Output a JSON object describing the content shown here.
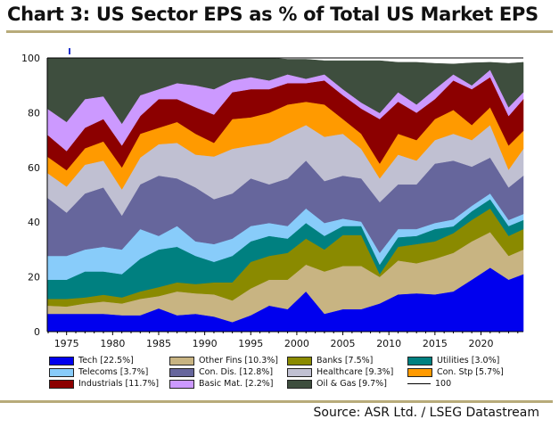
{
  "title": "Chart 3: US Sector EPS as % of Total US Market EPS",
  "source": "Source: ASR Ltd. / LSEG Datastream",
  "chart_data": {
    "type": "area",
    "stacked": true,
    "title": "Chart 3: US Sector EPS as % of Total US Market EPS",
    "xlabel": "",
    "ylabel": "",
    "xlim": [
      1972.9,
      2024.6
    ],
    "ylim": [
      0,
      100
    ],
    "x_ticks": [
      1975,
      1980,
      1985,
      1990,
      1995,
      2000,
      2005,
      2010,
      2015,
      2020
    ],
    "y_ticks": [
      0,
      20,
      40,
      60,
      80,
      100
    ],
    "grid": false,
    "legend_placement": "bottom",
    "x": [
      1973,
      1975,
      1977,
      1979,
      1981,
      1983,
      1985,
      1987,
      1989,
      1991,
      1993,
      1995,
      1997,
      1999,
      2001,
      2003,
      2005,
      2007,
      2009,
      2011,
      2013,
      2015,
      2017,
      2019,
      2021,
      2023,
      2024.5
    ],
    "series": [
      {
        "name": "Tech [22.5%]",
        "color": "#0000ee",
        "values": [
          6.5,
          6.5,
          6.5,
          6.5,
          6.0,
          6.0,
          8.5,
          6.0,
          6.5,
          5.5,
          3.5,
          6.0,
          9.5,
          8.2,
          14.7,
          6.5,
          8.2,
          8.2,
          10.3,
          13.6,
          14,
          13.6,
          14.7,
          19,
          23.4,
          19,
          21
        ]
      },
      {
        "name": "Other Fins [10.3%]",
        "color": "#c8b482",
        "values": [
          3.0,
          2.7,
          3.8,
          4.5,
          4.3,
          6.0,
          4.5,
          8.7,
          7.5,
          8.1,
          7.9,
          9.8,
          9.5,
          10.8,
          9.8,
          15.5,
          15.8,
          15.8,
          9.7,
          12.4,
          11,
          13.0,
          14.1,
          14,
          13.0,
          8.7,
          9
        ]
      },
      {
        "name": "Banks [7.5%]",
        "color": "#8a8a00",
        "values": [
          2.5,
          2.8,
          2.2,
          2.5,
          2.2,
          2.7,
          3.3,
          3.3,
          3.4,
          4.4,
          6.6,
          9.7,
          8.7,
          9.8,
          9.5,
          8.0,
          11.3,
          11.3,
          1.0,
          5.0,
          7,
          6.4,
          7.2,
          7.8,
          8.6,
          7.3,
          7.5
        ]
      },
      {
        "name": "Utilities [3.0%]",
        "color": "#008080",
        "values": [
          7.0,
          7.0,
          9.5,
          8.5,
          8.5,
          11.9,
          13.7,
          13.0,
          10.3,
          7.5,
          9.7,
          7.5,
          7.3,
          5.2,
          5.7,
          5.0,
          3.3,
          3.3,
          3.5,
          3.5,
          3,
          4.5,
          2.5,
          3.2,
          3.4,
          3.6,
          3.3
        ]
      },
      {
        "name": "Telecoms [3.7%]",
        "color": "#88ccfa",
        "values": [
          8.7,
          8.7,
          8.0,
          9.0,
          9.0,
          10.9,
          5.0,
          7.6,
          5.3,
          6.5,
          6.3,
          5.6,
          4.7,
          4.6,
          5.3,
          4.7,
          2.7,
          1.6,
          4.3,
          3.0,
          2.5,
          2.2,
          2.5,
          2.0,
          2.1,
          2.2,
          2.2
        ]
      },
      {
        "name": "Con. Dis. [12.8%]",
        "color": "#66669c",
        "values": [
          21.3,
          15.8,
          20.5,
          21.7,
          12.4,
          16.3,
          22.0,
          17.4,
          19.7,
          16.4,
          16.5,
          17.4,
          14.1,
          17.4,
          17.5,
          15.3,
          15.7,
          15.8,
          18.5,
          16.3,
          16.3,
          21.7,
          21.5,
          14.3,
          13.1,
          11.9,
          14
        ]
      },
      {
        "name": "Healthcare [9.3%]",
        "color": "#c0c0d2",
        "values": [
          9.0,
          9.5,
          10.5,
          9.8,
          9.6,
          9.8,
          11.5,
          13.0,
          12.0,
          15.6,
          16.3,
          12.0,
          15.2,
          16.3,
          13.0,
          16.2,
          15.3,
          10.8,
          8.7,
          10.9,
          8.7,
          8.6,
          9.8,
          9.7,
          11.9,
          6.5,
          9.8
        ]
      },
      {
        "name": "Con. Stp [5.7%]",
        "color": "#ff9a00",
        "values": [
          6.0,
          6.0,
          6.0,
          7.0,
          8.0,
          8.7,
          6.0,
          7.6,
          7.6,
          5.0,
          10.9,
          10.3,
          11.0,
          10.7,
          8.5,
          11.8,
          5.4,
          5.5,
          5.4,
          7.6,
          7.5,
          7.7,
          8.7,
          5.5,
          6.5,
          8.8,
          6.6
        ]
      },
      {
        "name": "Industrials [11.7%]",
        "color": "#8c0000",
        "values": [
          8.0,
          7.0,
          7.5,
          8.2,
          8.0,
          6.5,
          10.5,
          8.4,
          9.7,
          10.3,
          9.8,
          10.3,
          8.6,
          7.8,
          6.8,
          8.8,
          8.7,
          9.2,
          16.3,
          11.7,
          10,
          7.3,
          10.8,
          13.1,
          11.0,
          10.8,
          11.6
        ]
      },
      {
        "name": "Basic Mat. [2.2%]",
        "color": "#cc99ff",
        "values": [
          9.5,
          10.6,
          10.5,
          8.3,
          8.0,
          7.6,
          3.6,
          5.8,
          8.0,
          9.3,
          4.3,
          4.4,
          3.2,
          3.2,
          1.6,
          2.2,
          2.2,
          2.2,
          2.2,
          3.5,
          3,
          3.6,
          2.2,
          1.4,
          2.7,
          3.2,
          2.5
        ]
      },
      {
        "name": "Oil & Gas [9.7%]",
        "color": "#3e4e3e",
        "values": [
          18.5,
          23.4,
          15.0,
          14.0,
          24.0,
          13.6,
          11.4,
          9.2,
          10.0,
          11.4,
          8.2,
          7.0,
          8.2,
          5.5,
          7.1,
          5.0,
          10.4,
          15.3,
          19.1,
          10.9,
          15.4,
          9.4,
          3.8,
          8.2,
          2.7,
          16,
          10.9
        ]
      }
    ],
    "reference_line": {
      "name": "100",
      "value": 100,
      "color": "#000000"
    }
  }
}
